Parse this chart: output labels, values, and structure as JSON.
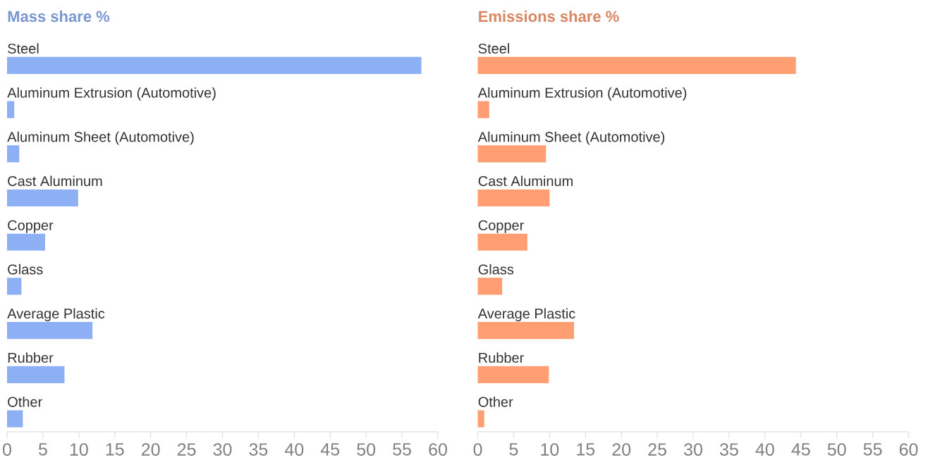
{
  "chart_data": [
    {
      "type": "bar",
      "orientation": "horizontal",
      "title": "Mass share %",
      "categories": [
        "Steel",
        "Aluminum Extrusion (Automotive)",
        "Aluminum Sheet (Automotive)",
        "Cast Aluminum",
        "Copper",
        "Glass",
        "Average Plastic",
        "Rubber",
        "Other"
      ],
      "values": [
        57.7,
        1.0,
        1.7,
        9.9,
        5.3,
        2.0,
        11.9,
        8.0,
        2.2
      ],
      "color": "#8db0f4",
      "xlim": [
        0,
        60
      ],
      "xticks": [
        0,
        5,
        10,
        15,
        20,
        25,
        30,
        35,
        40,
        45,
        50,
        55,
        60
      ]
    },
    {
      "type": "bar",
      "orientation": "horizontal",
      "title": "Emissions share %",
      "categories": [
        "Steel",
        "Aluminum Extrusion (Automotive)",
        "Aluminum Sheet (Automotive)",
        "Cast Aluminum",
        "Copper",
        "Glass",
        "Average Plastic",
        "Rubber",
        "Other"
      ],
      "values": [
        44.3,
        1.6,
        9.5,
        10.0,
        6.9,
        3.4,
        13.4,
        9.9,
        0.9
      ],
      "color": "#ff9e73",
      "xlim": [
        0,
        60
      ],
      "xticks": [
        0,
        5,
        10,
        15,
        20,
        25,
        30,
        35,
        40,
        45,
        50,
        55,
        60
      ]
    }
  ]
}
